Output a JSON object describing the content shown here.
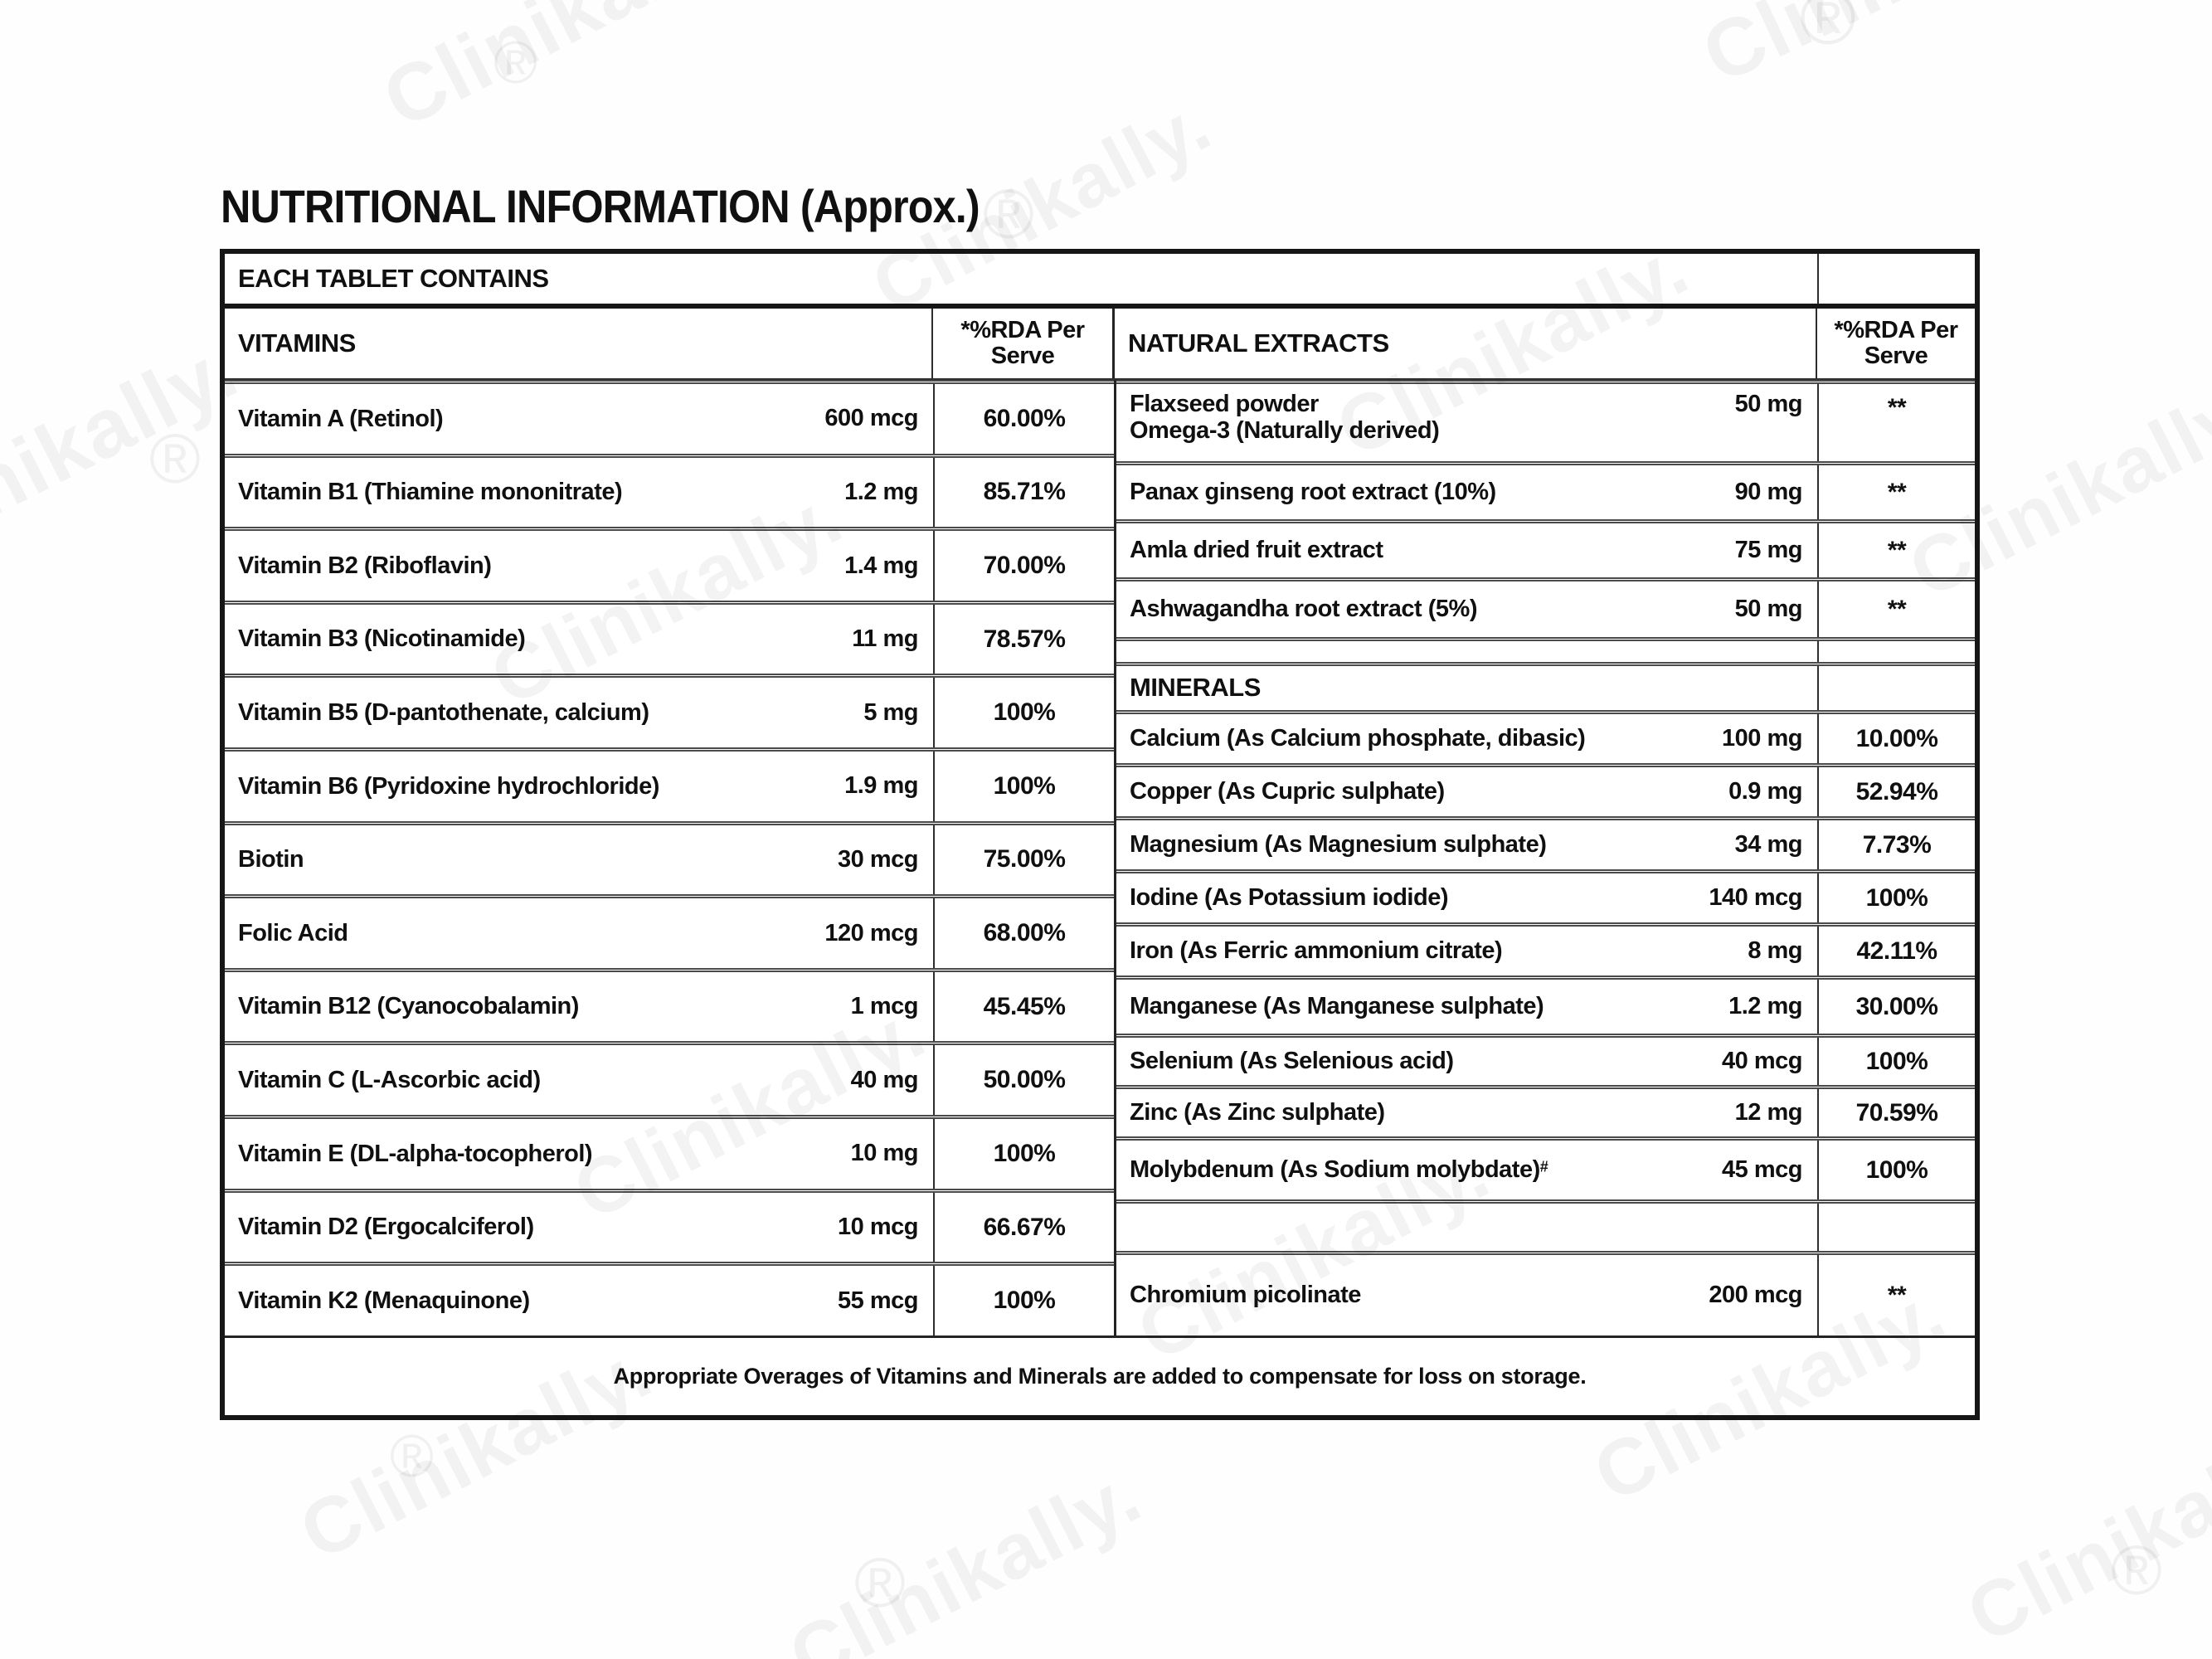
{
  "page": {
    "title": "NUTRITIONAL INFORMATION (Approx.)"
  },
  "table": {
    "subtitle": "EACH TABLET CONTAINS",
    "rda_header": "*%RDA Per\nServe",
    "footnote": "Appropriate Overages of Vitamins and Minerals are added to compensate for loss on storage.",
    "left": {
      "header": "VITAMINS",
      "rows": [
        {
          "type": "item",
          "label": "Vitamin A (Retinol)",
          "amount": "600 mcg",
          "rda": "60.00%"
        },
        {
          "type": "item",
          "label": "Vitamin B1 (Thiamine mononitrate)",
          "amount": "1.2 mg",
          "rda": "85.71%"
        },
        {
          "type": "item",
          "label": "Vitamin B2 (Riboflavin)",
          "amount": "1.4 mg",
          "rda": "70.00%"
        },
        {
          "type": "item",
          "label": "Vitamin B3 (Nicotinamide)",
          "amount": "11 mg",
          "rda": "78.57%"
        },
        {
          "type": "item",
          "label": "Vitamin B5 (D-pantothenate, calcium)",
          "amount": "5 mg",
          "rda": "100%"
        },
        {
          "type": "item",
          "label": "Vitamin B6 (Pyridoxine hydrochloride)",
          "amount": "1.9 mg",
          "rda": "100%"
        },
        {
          "type": "item",
          "label": "Biotin",
          "amount": "30 mcg",
          "rda": "75.00%"
        },
        {
          "type": "item",
          "label": "Folic Acid",
          "amount": "120 mcg",
          "rda": "68.00%"
        },
        {
          "type": "item",
          "label": "Vitamin B12 (Cyanocobalamin)",
          "amount": "1 mcg",
          "rda": "45.45%"
        },
        {
          "type": "item",
          "label": "Vitamin C (L-Ascorbic acid)",
          "amount": "40 mg",
          "rda": "50.00%"
        },
        {
          "type": "item",
          "label": "Vitamin E (DL-alpha-tocopherol)",
          "amount": "10 mg",
          "rda": "100%"
        },
        {
          "type": "item",
          "label": "Vitamin D2 (Ergocalciferol)",
          "amount": "10 mcg",
          "rda": "66.67%"
        },
        {
          "type": "item",
          "label": "Vitamin K2 (Menaquinone)",
          "amount": "55 mcg",
          "rda": "100%"
        }
      ]
    },
    "right": {
      "header": "NATURAL EXTRACTS",
      "minerals_header": "MINERALS",
      "rows": [
        {
          "type": "item",
          "label": "Flaxseed powder",
          "label2": "Omega-3 (Naturally derived)",
          "amount": "50 mg",
          "rda": "**"
        },
        {
          "type": "item",
          "label": "Panax ginseng root extract (10%)",
          "amount": "90 mg",
          "rda": "**"
        },
        {
          "type": "item",
          "label": "Amla dried fruit extract",
          "amount": "75 mg",
          "rda": "**"
        },
        {
          "type": "item",
          "label": "Ashwagandha root extract (5%)",
          "amount": "50 mg",
          "rda": "**"
        },
        {
          "type": "spacer"
        },
        {
          "type": "subheader",
          "label": "MINERALS"
        },
        {
          "type": "item",
          "label": "Calcium (As Calcium phosphate, dibasic)",
          "amount": "100 mg",
          "rda": "10.00%"
        },
        {
          "type": "item",
          "label": "Copper (As Cupric sulphate)",
          "amount": "0.9 mg",
          "rda": "52.94%"
        },
        {
          "type": "item",
          "label": "Magnesium (As Magnesium sulphate)",
          "amount": "34 mg",
          "rda": "7.73%"
        },
        {
          "type": "item",
          "label": "Iodine (As Potassium iodide)",
          "amount": "140 mcg",
          "rda": "100%"
        },
        {
          "type": "item",
          "label": "Iron (As Ferric ammonium citrate)",
          "amount": "8 mg",
          "rda": "42.11%"
        },
        {
          "type": "item",
          "label": "Manganese (As Manganese sulphate)",
          "amount": "1.2 mg",
          "rda": "30.00%"
        },
        {
          "type": "item",
          "label": "Selenium (As Selenious acid)",
          "amount": "40 mcg",
          "rda": "100%"
        },
        {
          "type": "item",
          "label": "Zinc (As Zinc sulphate)",
          "amount": "12 mg",
          "rda": "70.59%"
        },
        {
          "type": "item",
          "label": "Molybdenum (As Sodium molybdate)",
          "label_sup": "#",
          "amount": "45 mcg",
          "rda": "100%"
        },
        {
          "type": "spacer"
        },
        {
          "type": "item",
          "label": "Chromium picolinate",
          "amount": "200 mcg",
          "rda": "**"
        }
      ]
    }
  },
  "watermark": {
    "text": "Clinikally.",
    "reg": "®"
  }
}
